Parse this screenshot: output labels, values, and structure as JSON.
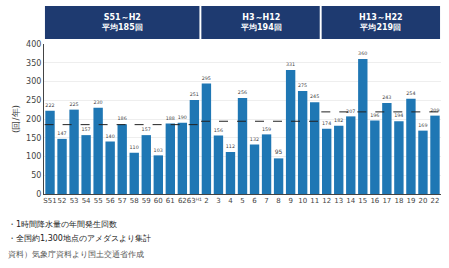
{
  "chart_data": {
    "type": "bar",
    "categories": [
      "S51",
      "52",
      "53",
      "54",
      "55",
      "56",
      "57",
      "58",
      "59",
      "60",
      "61",
      "62",
      "63ᴴ¹",
      "2",
      "3",
      "4",
      "5",
      "6",
      "7",
      "8",
      "9",
      "10",
      "11",
      "12",
      "13",
      "14",
      "15",
      "16",
      "17",
      "18",
      "19",
      "20",
      "22"
    ],
    "values": [
      222,
      147,
      225,
      157,
      230,
      140,
      186,
      110,
      157,
      103,
      188,
      190,
      251,
      295,
      156,
      112,
      256,
      132,
      159,
      95,
      331,
      275,
      245,
      174,
      182,
      207,
      360,
      196,
      243,
      194,
      254,
      169,
      209
    ],
    "data_labels": true,
    "ylabel": "(回/年)",
    "ylim": [
      0,
      400
    ],
    "yticks": [
      0,
      50,
      100,
      150,
      200,
      250,
      300,
      350,
      400
    ],
    "grid": true,
    "averages": [
      {
        "from": "S51",
        "to": "63ᴴ¹",
        "value": 185,
        "label": "S51～H2\n平均185回"
      },
      {
        "from": "2",
        "to": "11",
        "value": 194,
        "label": "H3～H12\n平均194回"
      },
      {
        "from": "12",
        "to": "22",
        "value": 219,
        "label": "H13～H22\n平均219回"
      }
    ],
    "notes": [
      "・1時間降水量の年間発生回数",
      "・全国約1,300地点のアメダスより集計"
    ],
    "source": "資料）気象庁資料より国土交通省作成"
  }
}
